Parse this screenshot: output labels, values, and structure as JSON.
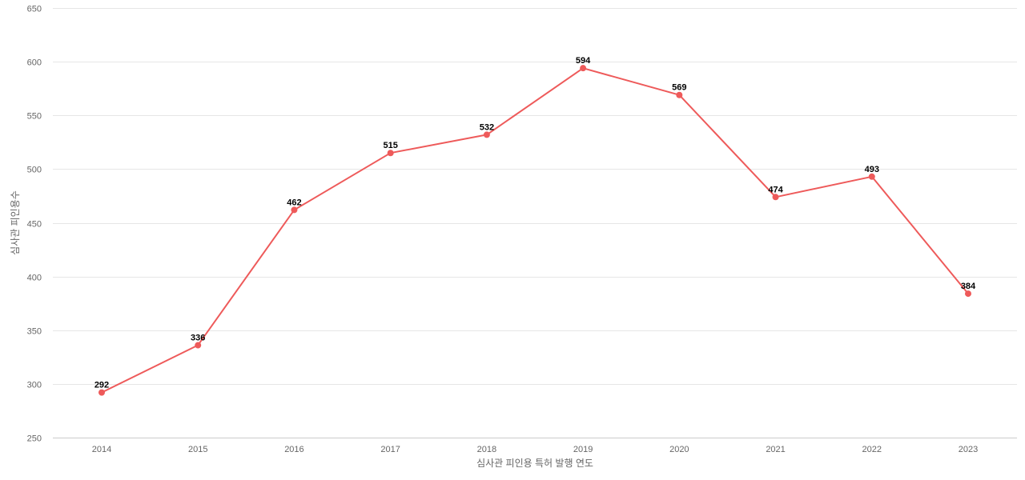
{
  "chart_data": {
    "type": "line",
    "title": "",
    "xlabel": "심사관 피인용 특허 발행 연도",
    "ylabel": "심사관 피인용수",
    "categories": [
      "2014",
      "2015",
      "2016",
      "2017",
      "2018",
      "2019",
      "2020",
      "2021",
      "2022",
      "2023"
    ],
    "series": [
      {
        "values": [
          292,
          336,
          462,
          515,
          532,
          594,
          569,
          474,
          493,
          384
        ],
        "color": "#ee5a5a"
      }
    ],
    "ylim": [
      250,
      650
    ],
    "yticks": [
      250,
      300,
      350,
      400,
      450,
      500,
      550,
      600,
      650
    ],
    "data_labels": true,
    "grid": true,
    "legend": "none"
  }
}
